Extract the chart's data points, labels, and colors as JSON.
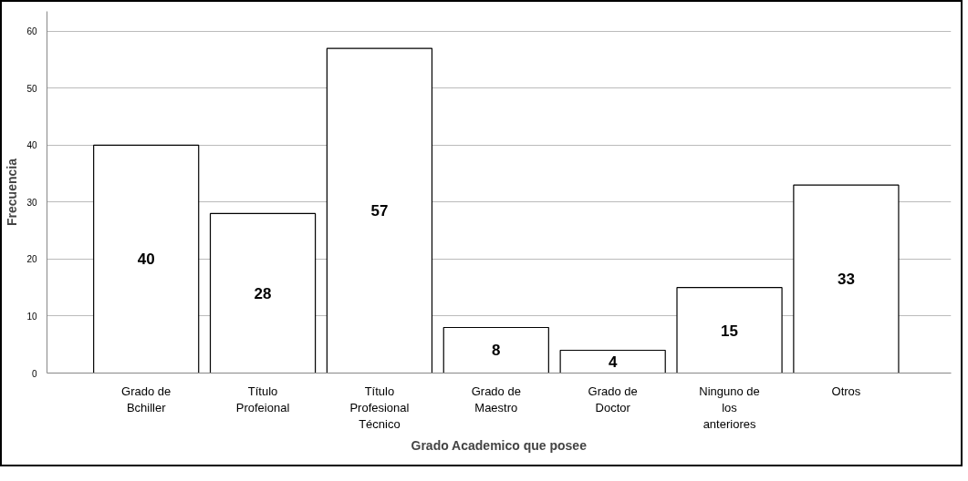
{
  "chart_data": {
    "type": "bar",
    "xlabel": "Grado Academico que posee",
    "ylabel": "Frecuencia",
    "categories": [
      "Grado de Bchiller",
      "Título Profeional",
      "Título Profesional Técnico",
      "Grado de Maestro",
      "Grado de Doctor",
      "Ninguno de los anteriores",
      "Otros"
    ],
    "values": [
      40,
      28,
      57,
      8,
      4,
      15,
      33
    ],
    "color": "#ffffff",
    "ylim": [
      0,
      63.5
    ],
    "yticks": [
      0,
      10,
      20,
      30,
      40,
      50,
      60
    ],
    "grid": "y",
    "data_labels": true
  }
}
